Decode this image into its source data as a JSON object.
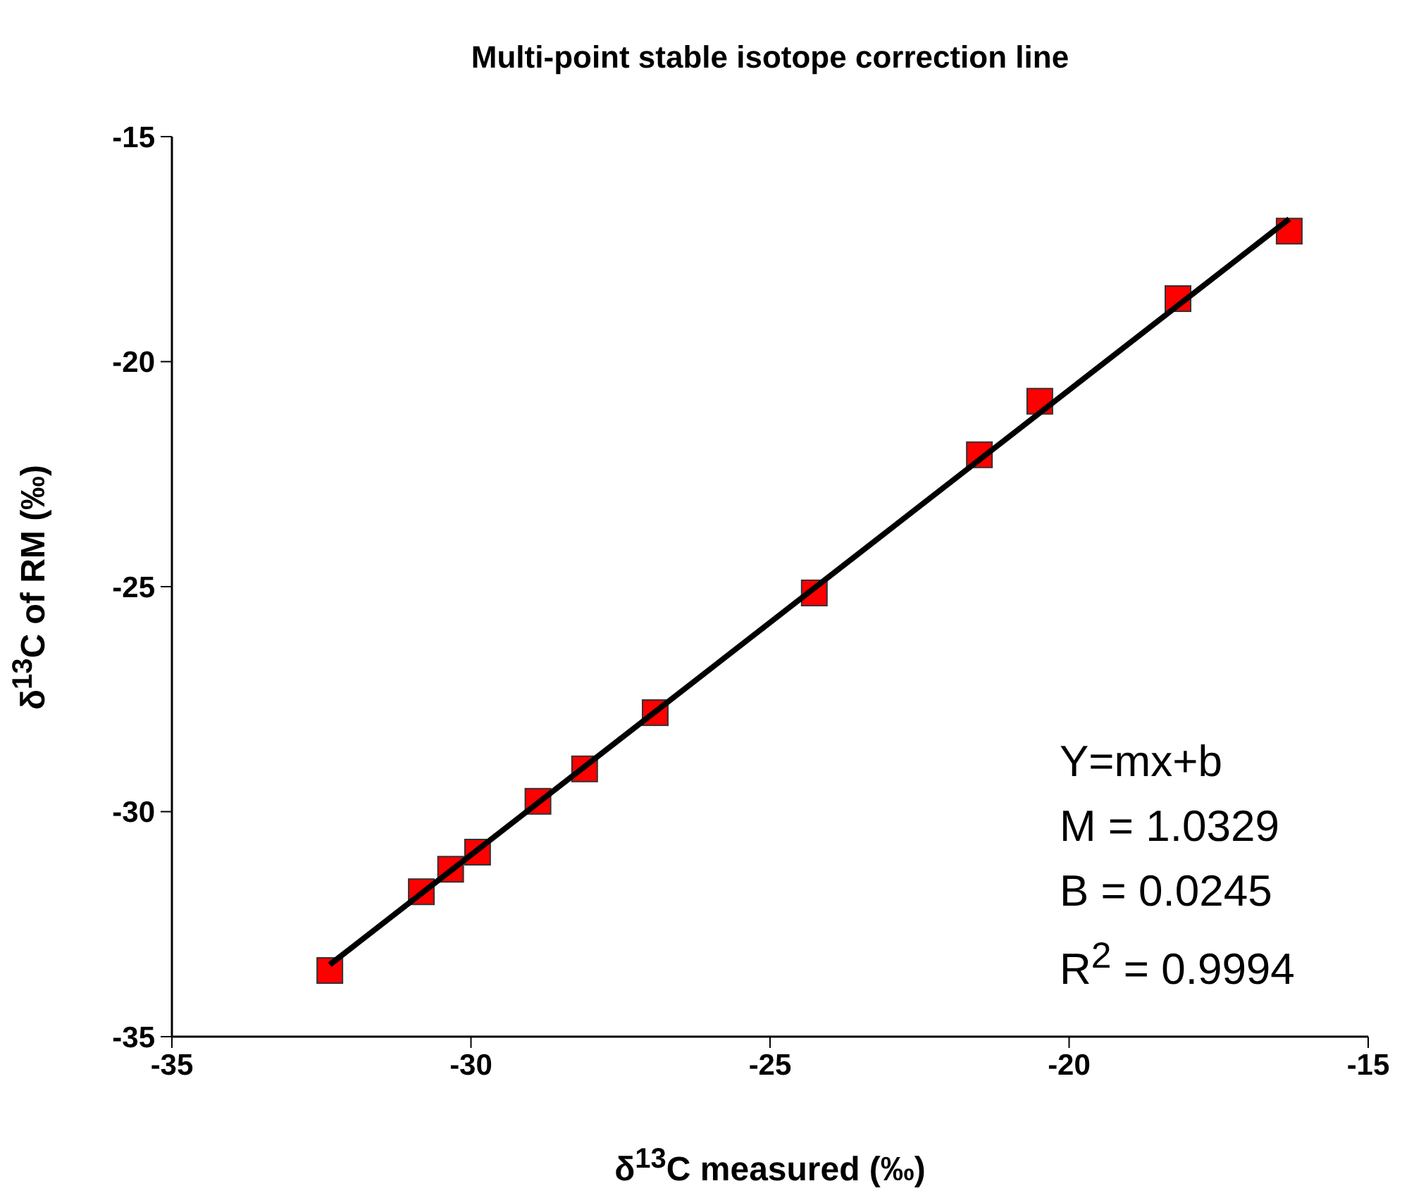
{
  "chart_data": {
    "type": "scatter",
    "title": "Multi-point stable isotope correction line",
    "xlabel": "δ$^{13}$C measured (‰)",
    "ylabel": "δ$^{13}$C of RM (‰)",
    "xlim": [
      -35,
      -15
    ],
    "xticks": [
      -35,
      -30,
      -25,
      -20,
      -15
    ],
    "ylim": [
      -35,
      -15
    ],
    "yticks": [
      -35,
      -30,
      -25,
      -20,
      -15
    ],
    "marker": "square",
    "series": [
      {
        "color": "#ff0000",
        "x": [
          -32.36,
          -30.83,
          -30.34,
          -29.89,
          -28.88,
          -28.1,
          -26.92,
          -24.26,
          -21.5,
          -20.49,
          -18.18,
          -16.32
        ],
        "values": [
          -33.53,
          -31.78,
          -31.28,
          -30.9,
          -29.77,
          -29.05,
          -27.8,
          -25.14,
          -22.07,
          -20.88,
          -18.6,
          -17.1
        ]
      },
      {
        "type": "line",
        "marker": "none",
        "color": "#000000",
        "x": [
          -32.36,
          -16.32
        ],
        "values": [
          -33.4,
          -16.83
        ]
      }
    ],
    "annotations": [
      "Y=mx+b",
      "M = 1.0329",
      "B = 0.0245",
      "R$^{2}$ = 0.9994"
    ]
  }
}
